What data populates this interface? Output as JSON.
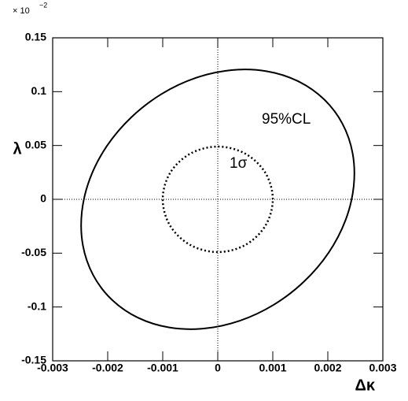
{
  "chart_data": {
    "type": "line",
    "x_label": "Δκ",
    "y_label": "λ",
    "y_scale_label": {
      "base": "× 10",
      "exponent": "−2"
    },
    "xlim": [
      -0.003,
      0.003
    ],
    "xticks": [
      -0.003,
      -0.002,
      -0.001,
      0,
      0.001,
      0.002,
      0.003
    ],
    "ylim": [
      -0.15,
      0.15
    ],
    "yticks": [
      -0.15,
      -0.1,
      -0.05,
      0,
      0.05,
      0.1,
      0.15
    ],
    "series": [
      {
        "name": "95%CL",
        "color": "#000000",
        "dash": "solid",
        "x": [
          0.00247,
          0.002451,
          0.002264,
          0.001923,
          0.001452,
          0.000882,
          0.00025,
          -0.000398,
          -0.001018,
          -0.001569,
          -0.002014,
          -0.002321,
          -0.00247,
          -0.002451,
          -0.002264,
          -0.001923,
          -0.001452,
          -0.000882,
          -0.00025,
          0.000398,
          0.001018,
          0.001569,
          0.002014,
          0.002321,
          0.00247
        ],
        "values": [
          0.012,
          0.0427,
          0.0704,
          0.0933,
          0.1099,
          0.119,
          0.12,
          0.1128,
          0.0979,
          0.0763,
          0.0496,
          0.0195,
          -0.012,
          -0.0427,
          -0.0704,
          -0.0933,
          -0.1099,
          -0.119,
          -0.12,
          -0.1128,
          -0.0979,
          -0.0763,
          -0.0496,
          -0.0195,
          0.012
        ]
      },
      {
        "name": "1σ",
        "color": "#000000",
        "dash": "dotted",
        "x": [
          0.001,
          0.000866,
          0.0005,
          0,
          -0.0005,
          -0.000866,
          -0.001,
          -0.000866,
          -0.0005,
          0,
          0.0005,
          0.000866,
          0.001
        ],
        "values": [
          0,
          0.0245,
          0.0424,
          0.049,
          0.0424,
          0.0245,
          0,
          -0.0245,
          -0.0424,
          -0.049,
          -0.0424,
          -0.0245,
          0
        ]
      }
    ]
  }
}
